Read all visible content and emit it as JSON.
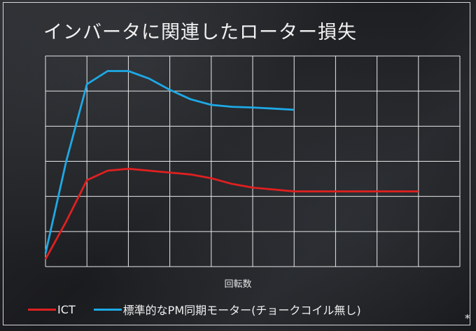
{
  "title": "インバータに関連したローター損失",
  "footnote": "*",
  "colors": {
    "ict": "#e02020",
    "pm": "#1ea9e6",
    "grid": "#e8e8e8"
  },
  "chart_data": {
    "type": "line",
    "title": "インバータに関連したローター損失",
    "xlabel": "回転数",
    "ylabel": "",
    "x_ticks_shown": false,
    "y_ticks_shown": false,
    "grid": true,
    "xlim": [
      0,
      9
    ],
    "ylim": [
      0,
      5.6
    ],
    "legend_position": "bottom",
    "series": [
      {
        "name": "ICT",
        "color": "#e02020",
        "x": [
          0,
          0.5,
          1,
          1.5,
          2,
          2.5,
          3,
          3.5,
          4,
          4.5,
          5,
          6,
          7,
          8,
          9
        ],
        "y": [
          0.2,
          1.2,
          2.3,
          2.55,
          2.6,
          2.55,
          2.5,
          2.45,
          2.35,
          2.2,
          2.1,
          2.0,
          2.0,
          2.0,
          2.0
        ]
      },
      {
        "name": "標準的なPM同期モーター(チョークコイル無し)",
        "color": "#1ea9e6",
        "x": [
          0,
          0.5,
          1,
          1.5,
          2,
          2.5,
          3,
          3.5,
          4,
          4.5,
          5,
          5.5,
          6
        ],
        "y": [
          0.35,
          2.8,
          4.85,
          5.2,
          5.2,
          5.0,
          4.7,
          4.45,
          4.3,
          4.25,
          4.23,
          4.2,
          4.17
        ]
      }
    ]
  }
}
